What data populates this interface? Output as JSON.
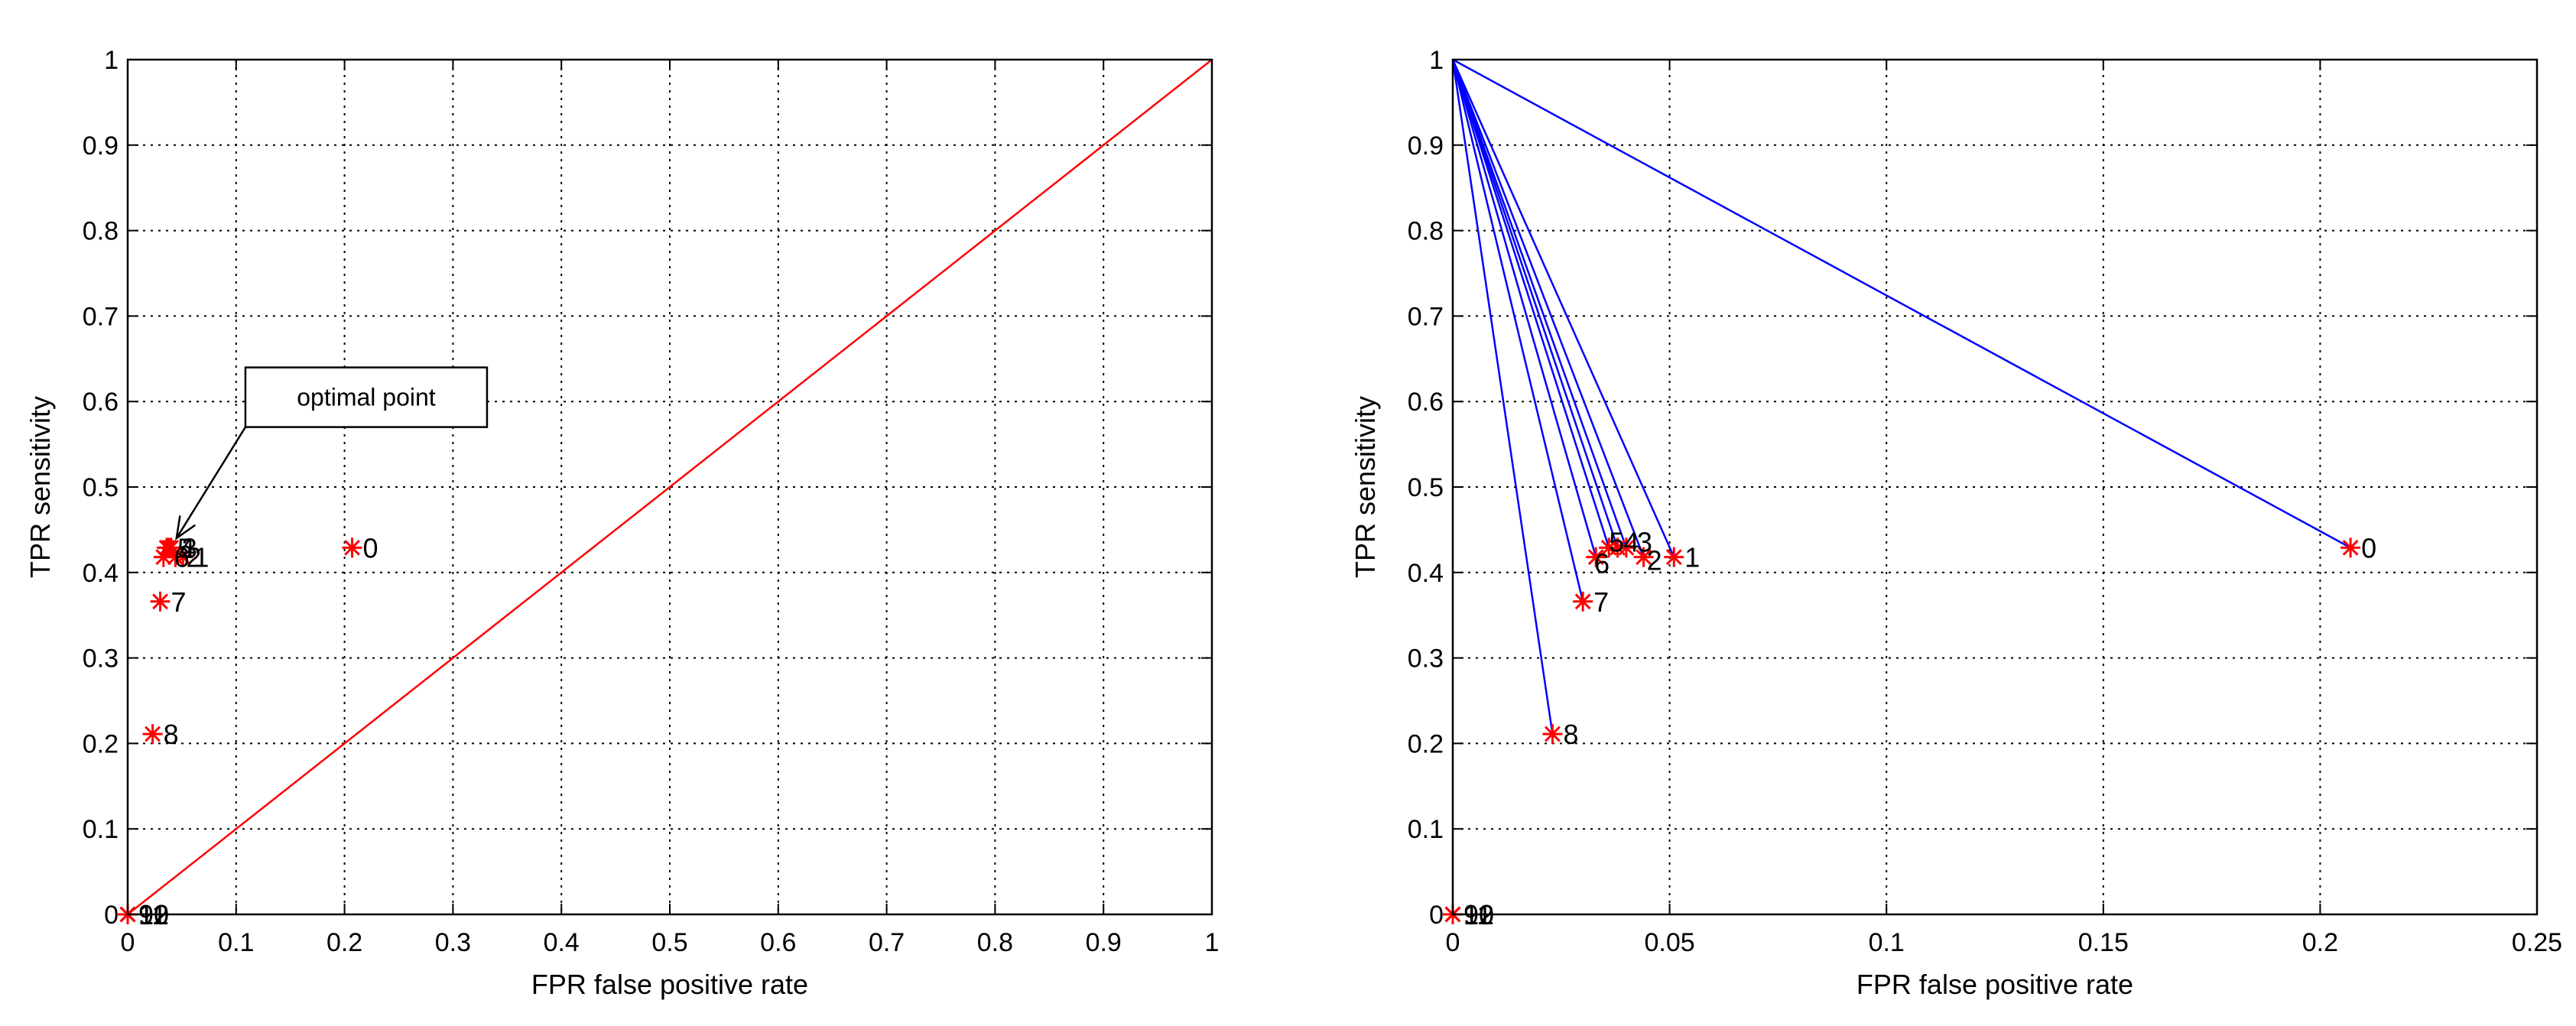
{
  "chart_data": [
    {
      "type": "scatter",
      "title": "",
      "xlabel": "FPR false positive rate",
      "ylabel": "TPR sensitivity",
      "xlim": [
        0,
        1
      ],
      "ylim": [
        0,
        1
      ],
      "xticks": [
        "0",
        "0.1",
        "0.2",
        "0.3",
        "0.4",
        "0.5",
        "0.6",
        "0.7",
        "0.8",
        "0.9",
        "1"
      ],
      "yticks": [
        "0",
        "0.1",
        "0.2",
        "0.3",
        "0.4",
        "0.5",
        "0.6",
        "0.7",
        "0.8",
        "0.9",
        "1"
      ],
      "grid": true,
      "marker": "*",
      "marker_color": "#ff0000",
      "reference_line": {
        "from": [
          0,
          0
        ],
        "to": [
          1,
          1
        ],
        "color": "#ff0000"
      },
      "points": [
        {
          "label": "0",
          "x": 0.207,
          "y": 0.429
        },
        {
          "label": "1",
          "x": 0.051,
          "y": 0.418
        },
        {
          "label": "2",
          "x": 0.044,
          "y": 0.418
        },
        {
          "label": "3",
          "x": 0.04,
          "y": 0.429
        },
        {
          "label": "4",
          "x": 0.038,
          "y": 0.429
        },
        {
          "label": "5",
          "x": 0.036,
          "y": 0.429
        },
        {
          "label": "6",
          "x": 0.033,
          "y": 0.418
        },
        {
          "label": "7",
          "x": 0.03,
          "y": 0.366
        },
        {
          "label": "8",
          "x": 0.023,
          "y": 0.211
        },
        {
          "label": "9",
          "x": 0.0,
          "y": 0.0
        },
        {
          "label": "10",
          "x": 0.0,
          "y": 0.0
        },
        {
          "label": "11",
          "x": 0.0,
          "y": 0.0
        },
        {
          "label": "12",
          "x": 0.0,
          "y": 0.0
        }
      ],
      "annotations": [
        {
          "text": "optimal point",
          "arrow_to": [
            0.045,
            0.44
          ],
          "box_at": [
            0.22,
            0.605
          ]
        }
      ]
    },
    {
      "type": "scatter",
      "title": "",
      "xlabel": "FPR false positive rate",
      "ylabel": "TPR sensitivity",
      "xlim": [
        0,
        0.25
      ],
      "ylim": [
        0,
        1
      ],
      "xticks": [
        "0",
        "0.05",
        "0.1",
        "0.15",
        "0.2",
        "0.25"
      ],
      "yticks": [
        "0",
        "0.1",
        "0.2",
        "0.3",
        "0.4",
        "0.5",
        "0.6",
        "0.7",
        "0.8",
        "0.9",
        "1"
      ],
      "grid": true,
      "marker": "*",
      "marker_color": "#ff0000",
      "line_color": "#0000ff",
      "lines_from": [
        0,
        1
      ],
      "points": [
        {
          "label": "0",
          "x": 0.207,
          "y": 0.429
        },
        {
          "label": "1",
          "x": 0.051,
          "y": 0.418
        },
        {
          "label": "2",
          "x": 0.044,
          "y": 0.418
        },
        {
          "label": "3",
          "x": 0.04,
          "y": 0.429
        },
        {
          "label": "4",
          "x": 0.038,
          "y": 0.429
        },
        {
          "label": "5",
          "x": 0.036,
          "y": 0.429
        },
        {
          "label": "6",
          "x": 0.033,
          "y": 0.418
        },
        {
          "label": "7",
          "x": 0.03,
          "y": 0.366
        },
        {
          "label": "8",
          "x": 0.023,
          "y": 0.211
        },
        {
          "label": "9",
          "x": 0.0,
          "y": 0.0
        },
        {
          "label": "10",
          "x": 0.0,
          "y": 0.0
        },
        {
          "label": "11",
          "x": 0.0,
          "y": 0.0
        },
        {
          "label": "12",
          "x": 0.0,
          "y": 0.0
        }
      ],
      "annotations": []
    }
  ]
}
